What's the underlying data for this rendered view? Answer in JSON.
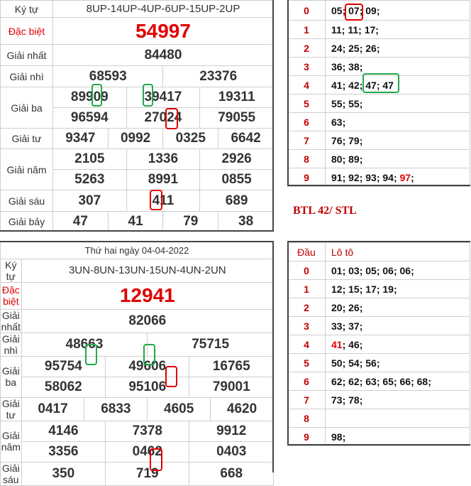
{
  "top_result": {
    "ky_tu_label": "Ký tự",
    "ky_tu": "8UP-14UP-4UP-6UP-15UP-2UP",
    "dac_biet_label": "Đặc biệt",
    "dac_biet": "54997",
    "nhat_label": "Giải nhất",
    "nhat": "84480",
    "nhi_label": "Giải nhì",
    "nhi": [
      "68593",
      "23376"
    ],
    "ba_label": "Giải ba",
    "ba": [
      "89909",
      "39417",
      "19311",
      "96594",
      "27024",
      "79055"
    ],
    "tu_label": "Giải tư",
    "tu": [
      "9347",
      "0992",
      "0325",
      "6642"
    ],
    "nam_label": "Giải năm",
    "nam": [
      "2105",
      "1336",
      "2926",
      "5263",
      "8991",
      "0855"
    ],
    "sau_label": "Giải sáu",
    "sau": [
      "307",
      "411",
      "689"
    ],
    "bay_label": "Giải bảy",
    "bay": [
      "47",
      "41",
      "79",
      "38"
    ]
  },
  "top_loto": {
    "rows": [
      {
        "dau": "0",
        "values": "05; 07; 09;"
      },
      {
        "dau": "1",
        "values": "11; 11; 17;"
      },
      {
        "dau": "2",
        "values": "24; 25; 26;"
      },
      {
        "dau": "3",
        "values": "36; 38;"
      },
      {
        "dau": "4",
        "values": "41; 42; 47; 47"
      },
      {
        "dau": "5",
        "values": "55; 55;"
      },
      {
        "dau": "6",
        "values": "63;"
      },
      {
        "dau": "7",
        "values": "76; 79;"
      },
      {
        "dau": "8",
        "values": "80; 89;"
      },
      {
        "dau": "9",
        "values_pre": "91; 92; 93; 94;",
        "values_red": "97",
        "values_post": ";"
      }
    ]
  },
  "note": "BTL 42/ STL",
  "bottom_result": {
    "date": "Thứ hai ngày 04-04-2022",
    "ky_tu_label": "Ký tự",
    "ky_tu": "3UN-8UN-13UN-15UN-4UN-2UN",
    "dac_biet_label": "Đặc biệt",
    "dac_biet": "12941",
    "nhat_label": "Giải nhất",
    "nhat": "82066",
    "nhi_label": "Giải nhì",
    "nhi": [
      "48663",
      "75715"
    ],
    "ba_label": "Giải ba",
    "ba": [
      "95754",
      "49606",
      "16765",
      "58062",
      "95106",
      "79001"
    ],
    "tu_label": "Giải tư",
    "tu": [
      "0417",
      "6833",
      "4605",
      "4620"
    ],
    "nam_label": "Giải năm",
    "nam": [
      "4146",
      "7378",
      "9912",
      "3356",
      "0462",
      "0403"
    ],
    "sau_label": "Giải sáu",
    "sau": [
      "350",
      "719",
      "668"
    ]
  },
  "bottom_loto": {
    "header_dau": "Đầu",
    "header_loto": "Lô tô",
    "rows": [
      {
        "dau": "0",
        "values": "01; 03; 05; 06; 06;"
      },
      {
        "dau": "1",
        "values": "12; 15; 17; 19;"
      },
      {
        "dau": "2",
        "values": "20; 26;"
      },
      {
        "dau": "3",
        "values": "33; 37;"
      },
      {
        "dau": "4",
        "values_red": "41",
        "values_post": "; 46;"
      },
      {
        "dau": "5",
        "values": "50; 54; 56;"
      },
      {
        "dau": "6",
        "values": "62; 62; 63; 65; 66; 68;"
      },
      {
        "dau": "7",
        "values": "73; 78;"
      },
      {
        "dau": "8",
        "values": ""
      },
      {
        "dau": "9",
        "values": "98;"
      }
    ]
  }
}
